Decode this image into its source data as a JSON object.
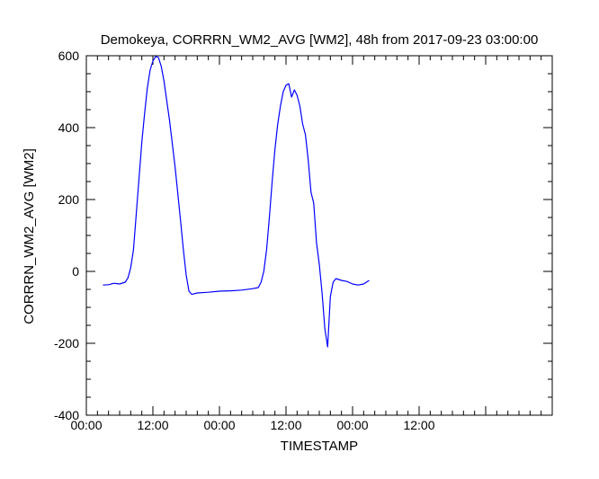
{
  "chart_data": {
    "type": "line",
    "title": "Demokeya, CORRRN_WM2_AVG [WM2], 48h from  2017-09-23 03:00:00",
    "xlabel": "TIMESTAMP",
    "ylabel": "CORRRN_WM2_AVG [WM2]",
    "xlim": [
      "2017-09-23 00:00",
      "2017-09-26 12:00"
    ],
    "ylim": [
      -400,
      600
    ],
    "x_tick_labels": [
      "00:00",
      "12:00",
      "00:00",
      "12:00",
      "00:00",
      "12:00"
    ],
    "y_tick_labels": [
      "-400",
      "-200",
      "0",
      "200",
      "400",
      "600"
    ],
    "y_tick_values": [
      -400,
      -200,
      0,
      200,
      400,
      600
    ],
    "grid": false,
    "series": [
      {
        "color": "#0000ff",
        "points": [
          [
            "2017-09-23 03:00",
            -38
          ],
          [
            "2017-09-23 04:00",
            -37
          ],
          [
            "2017-09-23 05:00",
            -33
          ],
          [
            "2017-09-23 06:00",
            -35
          ],
          [
            "2017-09-23 07:00",
            -30
          ],
          [
            "2017-09-23 07:30",
            -18
          ],
          [
            "2017-09-23 08:00",
            10
          ],
          [
            "2017-09-23 08:30",
            60
          ],
          [
            "2017-09-23 09:00",
            160
          ],
          [
            "2017-09-23 09:30",
            260
          ],
          [
            "2017-09-23 10:00",
            360
          ],
          [
            "2017-09-23 10:30",
            440
          ],
          [
            "2017-09-23 11:00",
            510
          ],
          [
            "2017-09-23 11:30",
            560
          ],
          [
            "2017-09-23 12:00",
            585
          ],
          [
            "2017-09-23 12:30",
            598
          ],
          [
            "2017-09-23 13:00",
            595
          ],
          [
            "2017-09-23 13:30",
            570
          ],
          [
            "2017-09-23 14:00",
            530
          ],
          [
            "2017-09-23 15:00",
            420
          ],
          [
            "2017-09-23 16:00",
            290
          ],
          [
            "2017-09-23 17:00",
            140
          ],
          [
            "2017-09-23 17:30",
            60
          ],
          [
            "2017-09-23 18:00",
            -10
          ],
          [
            "2017-09-23 18:30",
            -55
          ],
          [
            "2017-09-23 19:00",
            -64
          ],
          [
            "2017-09-23 20:00",
            -60
          ],
          [
            "2017-09-23 22:00",
            -58
          ],
          [
            "2017-09-24 00:00",
            -55
          ],
          [
            "2017-09-24 02:00",
            -54
          ],
          [
            "2017-09-24 04:00",
            -52
          ],
          [
            "2017-09-24 06:00",
            -48
          ],
          [
            "2017-09-24 07:00",
            -45
          ],
          [
            "2017-09-24 07:30",
            -30
          ],
          [
            "2017-09-24 08:00",
            0
          ],
          [
            "2017-09-24 08:30",
            60
          ],
          [
            "2017-09-24 09:00",
            150
          ],
          [
            "2017-09-24 09:30",
            250
          ],
          [
            "2017-09-24 10:00",
            340
          ],
          [
            "2017-09-24 10:30",
            410
          ],
          [
            "2017-09-24 11:00",
            460
          ],
          [
            "2017-09-24 11:30",
            500
          ],
          [
            "2017-09-24 12:00",
            518
          ],
          [
            "2017-09-24 12:30",
            522
          ],
          [
            "2017-09-24 13:00",
            485
          ],
          [
            "2017-09-24 13:30",
            505
          ],
          [
            "2017-09-24 14:00",
            490
          ],
          [
            "2017-09-24 14:30",
            460
          ],
          [
            "2017-09-24 15:00",
            410
          ],
          [
            "2017-09-24 15:30",
            380
          ],
          [
            "2017-09-24 16:00",
            310
          ],
          [
            "2017-09-24 16:30",
            220
          ],
          [
            "2017-09-24 17:00",
            190
          ],
          [
            "2017-09-24 17:30",
            80
          ],
          [
            "2017-09-24 18:00",
            20
          ],
          [
            "2017-09-24 18:30",
            -60
          ],
          [
            "2017-09-24 19:00",
            -160
          ],
          [
            "2017-09-24 19:30",
            -210
          ],
          [
            "2017-09-24 20:00",
            -70
          ],
          [
            "2017-09-24 20:30",
            -30
          ],
          [
            "2017-09-24 21:00",
            -20
          ],
          [
            "2017-09-24 22:00",
            -25
          ],
          [
            "2017-09-24 23:00",
            -28
          ],
          [
            "2017-09-25 00:00",
            -35
          ],
          [
            "2017-09-25 01:00",
            -38
          ],
          [
            "2017-09-25 02:00",
            -35
          ],
          [
            "2017-09-25 03:00",
            -25
          ]
        ]
      }
    ]
  }
}
